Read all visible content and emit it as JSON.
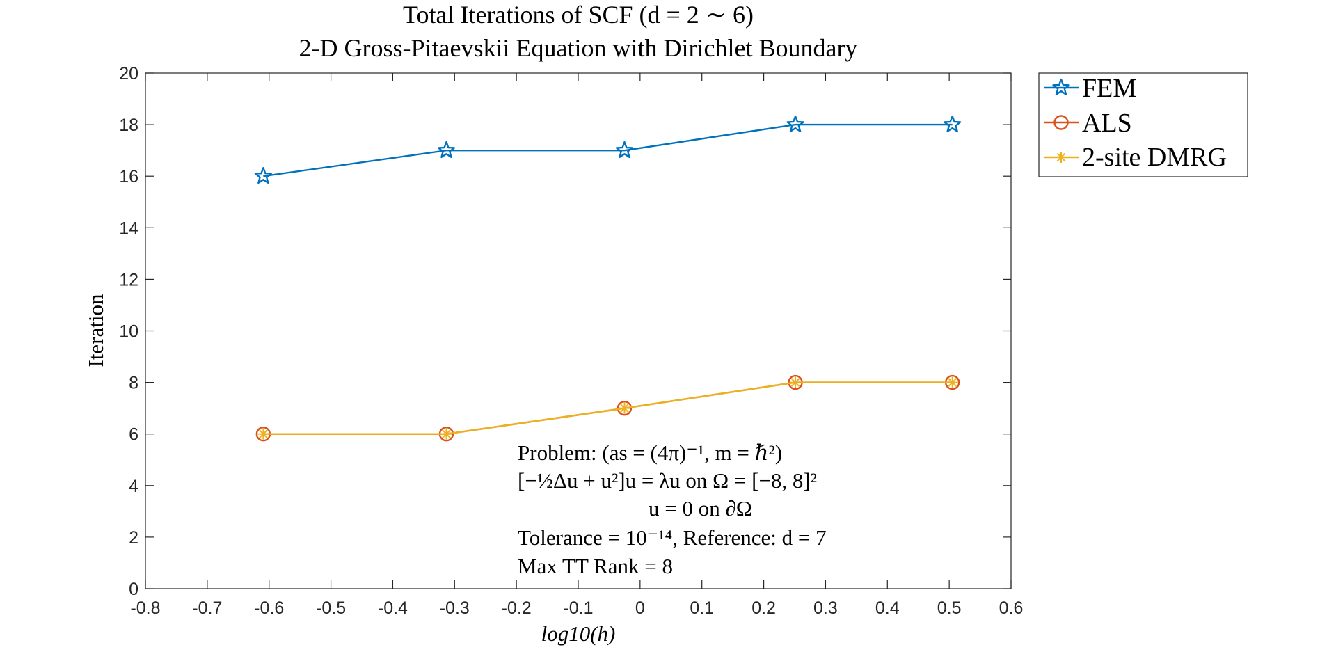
{
  "chart_data": {
    "type": "line",
    "title": "Total Iterations of SCF (d = 2 ∼ 6)",
    "subtitle": "2-D Gross-Pitaevskii Equation with Dirichlet Boundary",
    "xlabel": "log10(h)",
    "ylabel": "Iteration",
    "xlim": [
      -0.8,
      0.6
    ],
    "ylim": [
      0,
      20
    ],
    "xticks": [
      "-0.8",
      "-0.7",
      "-0.6",
      "-0.5",
      "-0.4",
      "-0.3",
      "-0.2",
      "-0.1",
      "0",
      "0.1",
      "0.2",
      "0.3",
      "0.4",
      "0.5",
      "0.6"
    ],
    "yticks": [
      "0",
      "2",
      "4",
      "6",
      "8",
      "10",
      "12",
      "14",
      "16",
      "18",
      "20"
    ],
    "grid": false,
    "legend_position": "outside-top-right",
    "x": [
      -0.6094,
      -0.3133,
      -0.0252,
      0.2512,
      0.5051
    ],
    "series": [
      {
        "name": "FEM",
        "values": [
          16,
          17,
          17,
          18,
          18
        ],
        "color": "#0072BD",
        "marker": "pentagram"
      },
      {
        "name": "ALS",
        "values": [
          6,
          6,
          7,
          8,
          8
        ],
        "color": "#D95319",
        "marker": "circle"
      },
      {
        "name": "2-site DMRG",
        "values": [
          6,
          6,
          7,
          8,
          8
        ],
        "color": "#EDB120",
        "marker": "asterisk"
      }
    ],
    "annotations": [
      "Problem:  (as = (4π)⁻¹,  m = ℏ²)",
      "[−½Δu + u²]u = λu   on   Ω = [−8, 8]²",
      "u = 0      on   ∂Ω",
      "Tolerance = 10⁻¹⁴,   Reference: d = 7",
      "Max TT Rank = 8"
    ]
  }
}
